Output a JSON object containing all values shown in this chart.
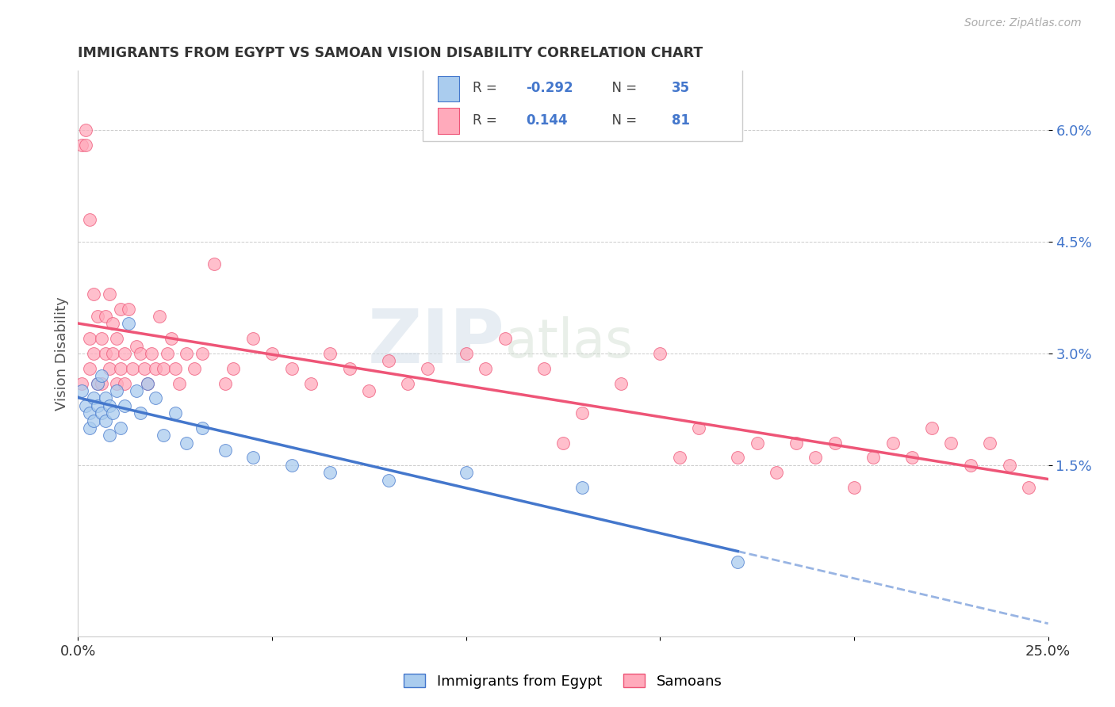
{
  "title": "IMMIGRANTS FROM EGYPT VS SAMOAN VISION DISABILITY CORRELATION CHART",
  "source": "Source: ZipAtlas.com",
  "ylabel": "Vision Disability",
  "legend_label_blue": "Immigrants from Egypt",
  "legend_label_pink": "Samoans",
  "R_blue": -0.292,
  "N_blue": 35,
  "R_pink": 0.144,
  "N_pink": 81,
  "xlim": [
    0.0,
    0.25
  ],
  "ylim": [
    -0.008,
    0.068
  ],
  "yticks": [
    0.015,
    0.03,
    0.045,
    0.06
  ],
  "ytick_labels": [
    "1.5%",
    "3.0%",
    "4.5%",
    "6.0%"
  ],
  "xticks": [
    0.0,
    0.05,
    0.1,
    0.15,
    0.2,
    0.25
  ],
  "xtick_labels": [
    "0.0%",
    "",
    "",
    "",
    "",
    "25.0%"
  ],
  "color_blue": "#aaccee",
  "color_pink": "#ffaabb",
  "line_color_blue": "#4477cc",
  "line_color_pink": "#ee5577",
  "watermark_zip": "ZIP",
  "watermark_atlas": "atlas",
  "blue_scatter_x": [
    0.001,
    0.002,
    0.003,
    0.003,
    0.004,
    0.004,
    0.005,
    0.005,
    0.006,
    0.006,
    0.007,
    0.007,
    0.008,
    0.008,
    0.009,
    0.01,
    0.011,
    0.012,
    0.013,
    0.015,
    0.016,
    0.018,
    0.02,
    0.022,
    0.025,
    0.028,
    0.032,
    0.038,
    0.045,
    0.055,
    0.065,
    0.08,
    0.1,
    0.13,
    0.17
  ],
  "blue_scatter_y": [
    0.025,
    0.023,
    0.022,
    0.02,
    0.024,
    0.021,
    0.026,
    0.023,
    0.027,
    0.022,
    0.024,
    0.021,
    0.023,
    0.019,
    0.022,
    0.025,
    0.02,
    0.023,
    0.034,
    0.025,
    0.022,
    0.026,
    0.024,
    0.019,
    0.022,
    0.018,
    0.02,
    0.017,
    0.016,
    0.015,
    0.014,
    0.013,
    0.014,
    0.012,
    0.002
  ],
  "pink_scatter_x": [
    0.001,
    0.001,
    0.002,
    0.002,
    0.003,
    0.003,
    0.003,
    0.004,
    0.004,
    0.005,
    0.005,
    0.006,
    0.006,
    0.007,
    0.007,
    0.008,
    0.008,
    0.009,
    0.009,
    0.01,
    0.01,
    0.011,
    0.011,
    0.012,
    0.012,
    0.013,
    0.014,
    0.015,
    0.016,
    0.017,
    0.018,
    0.019,
    0.02,
    0.021,
    0.022,
    0.023,
    0.024,
    0.025,
    0.026,
    0.028,
    0.03,
    0.032,
    0.035,
    0.038,
    0.04,
    0.045,
    0.05,
    0.055,
    0.06,
    0.065,
    0.07,
    0.075,
    0.08,
    0.085,
    0.09,
    0.1,
    0.105,
    0.11,
    0.12,
    0.125,
    0.13,
    0.14,
    0.15,
    0.155,
    0.16,
    0.17,
    0.175,
    0.18,
    0.185,
    0.19,
    0.195,
    0.2,
    0.205,
    0.21,
    0.215,
    0.22,
    0.225,
    0.23,
    0.235,
    0.24,
    0.245
  ],
  "pink_scatter_y": [
    0.026,
    0.058,
    0.06,
    0.058,
    0.028,
    0.032,
    0.048,
    0.03,
    0.038,
    0.026,
    0.035,
    0.026,
    0.032,
    0.03,
    0.035,
    0.038,
    0.028,
    0.034,
    0.03,
    0.032,
    0.026,
    0.036,
    0.028,
    0.026,
    0.03,
    0.036,
    0.028,
    0.031,
    0.03,
    0.028,
    0.026,
    0.03,
    0.028,
    0.035,
    0.028,
    0.03,
    0.032,
    0.028,
    0.026,
    0.03,
    0.028,
    0.03,
    0.042,
    0.026,
    0.028,
    0.032,
    0.03,
    0.028,
    0.026,
    0.03,
    0.028,
    0.025,
    0.029,
    0.026,
    0.028,
    0.03,
    0.028,
    0.032,
    0.028,
    0.018,
    0.022,
    0.026,
    0.03,
    0.016,
    0.02,
    0.016,
    0.018,
    0.014,
    0.018,
    0.016,
    0.018,
    0.012,
    0.016,
    0.018,
    0.016,
    0.02,
    0.018,
    0.015,
    0.018,
    0.015,
    0.012
  ]
}
